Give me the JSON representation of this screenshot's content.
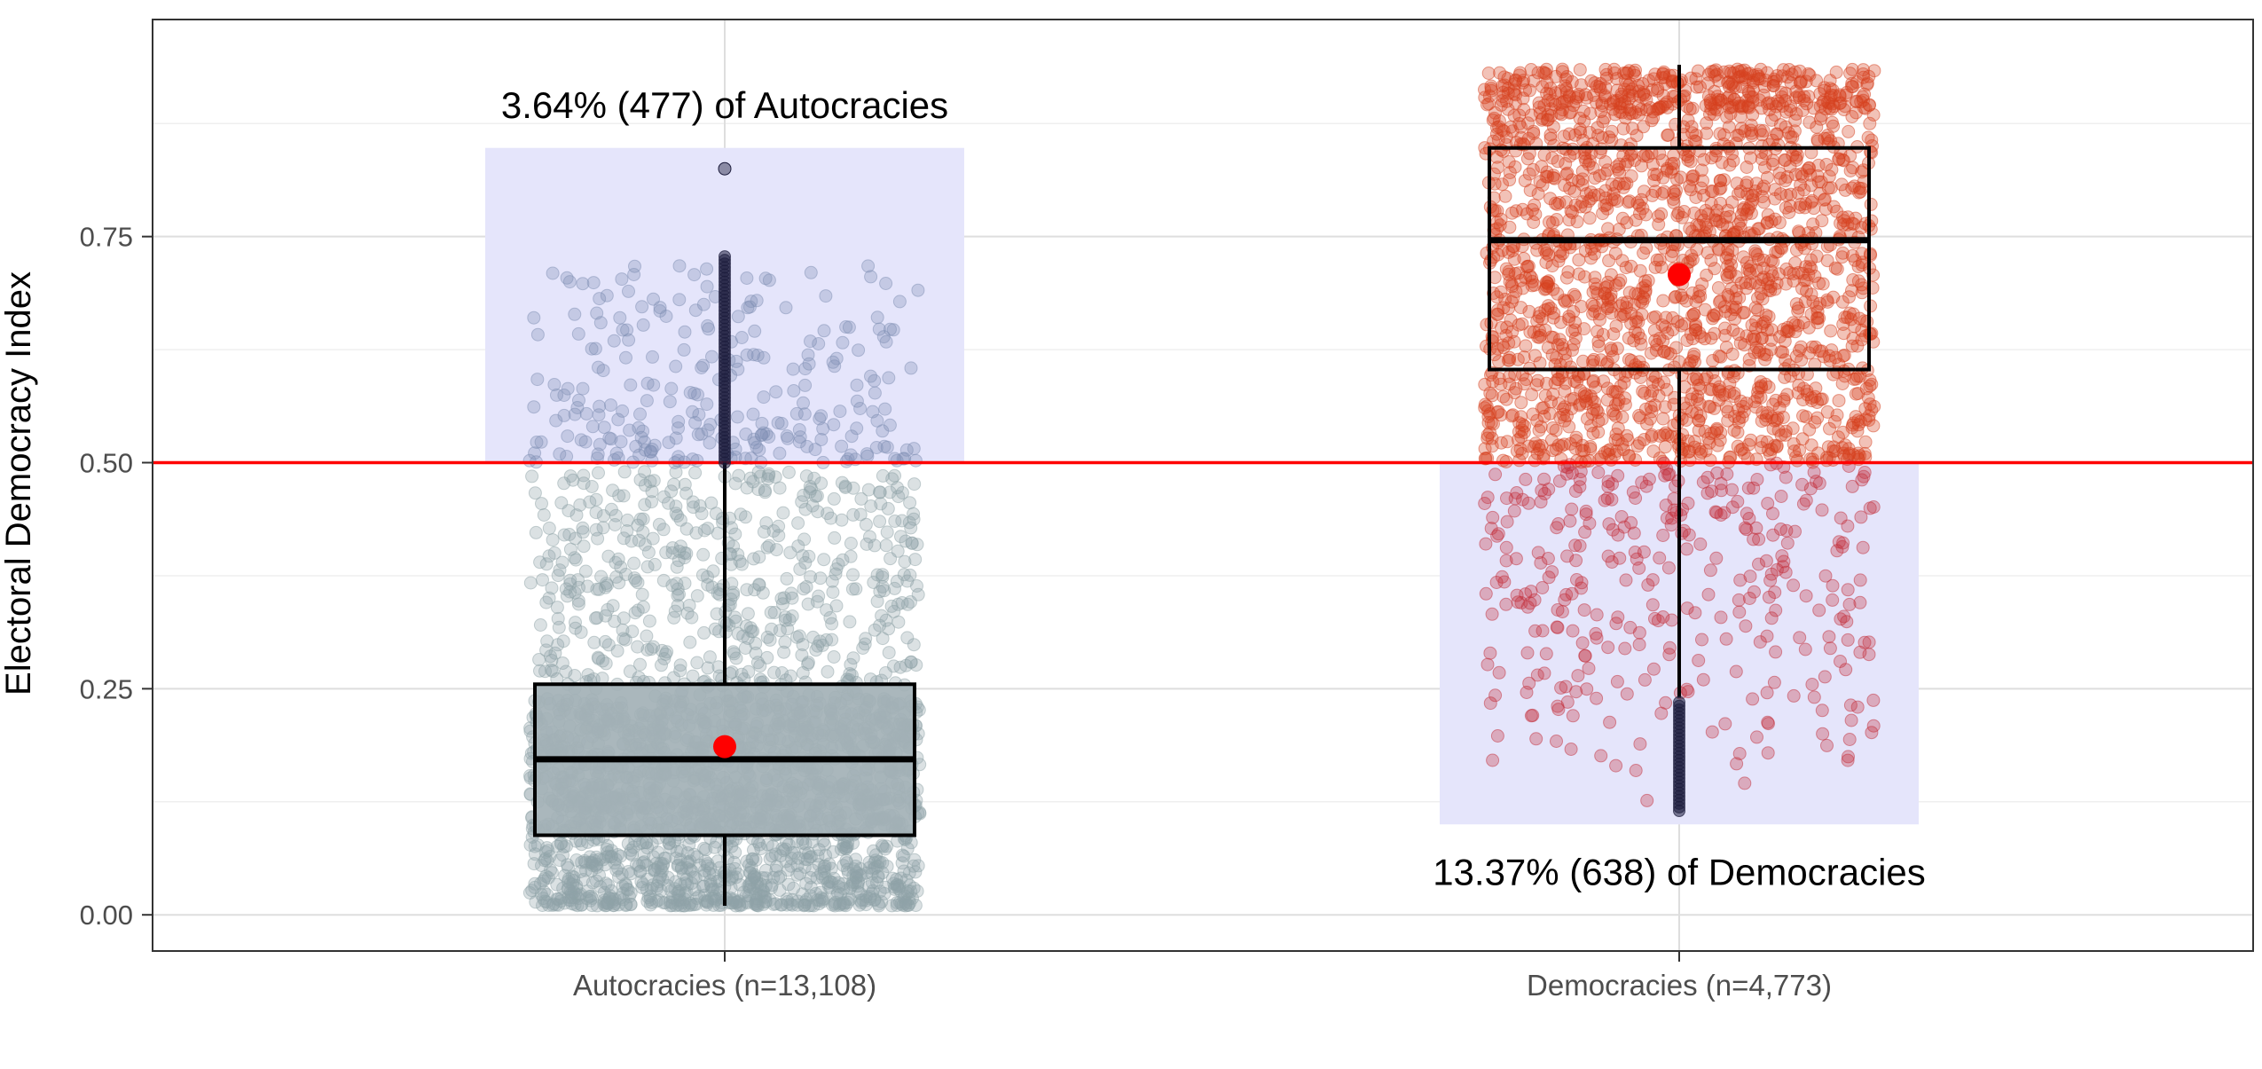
{
  "chart_data": {
    "type": "boxplot",
    "title": "",
    "xlabel": "",
    "ylabel": "Electoral Democracy Index",
    "ylim": [
      -0.04,
      0.99
    ],
    "yticks": [
      0.0,
      0.25,
      0.5,
      0.75
    ],
    "ytick_labels": [
      "0.00",
      "0.25",
      "0.50",
      "0.75"
    ],
    "grid": true,
    "legend": "none",
    "threshold": {
      "y": 0.5,
      "color": "#ff0000"
    },
    "categories": [
      "Autocracies (n=13,108)",
      "Democracies (n=4,773)"
    ],
    "groups": [
      {
        "category": "Autocracies (n=13,108)",
        "n": 13108,
        "box": {
          "lower_whisker": 0.01,
          "q1": 0.088,
          "median": 0.172,
          "q3": 0.255,
          "upper_whisker": 0.5
        },
        "mean": 0.186,
        "outliers": {
          "min": 0.5,
          "max": 0.73,
          "extra": [
            0.825
          ]
        },
        "point_color": "#8fa3a8",
        "highlight_point_color": "#8090b4",
        "highlight_region": {
          "ymin": 0.5,
          "ymax": 0.848
        },
        "annotation": {
          "text": "3.64% (477) of Autocracies",
          "y": 0.895
        }
      },
      {
        "category": "Democracies (n=4,773)",
        "n": 4773,
        "box": {
          "lower_whisker": 0.24,
          "q1": 0.603,
          "median": 0.746,
          "q3": 0.848,
          "upper_whisker": 0.94
        },
        "mean": 0.708,
        "outliers": {
          "min": 0.115,
          "max": 0.235
        },
        "point_color": "#d6401e",
        "highlight_point_color": "#c4303c",
        "highlight_region": {
          "ymin": 0.1,
          "ymax": 0.5
        },
        "annotation": {
          "text": "13.37% (638) of Democracies",
          "y": 0.047
        }
      }
    ],
    "colors": {
      "highlight_fill": "#e5e5fb",
      "box_fill": "#a3b1b6",
      "mean_dot": "#ff0000",
      "outlier": "#1c1c3c"
    }
  }
}
